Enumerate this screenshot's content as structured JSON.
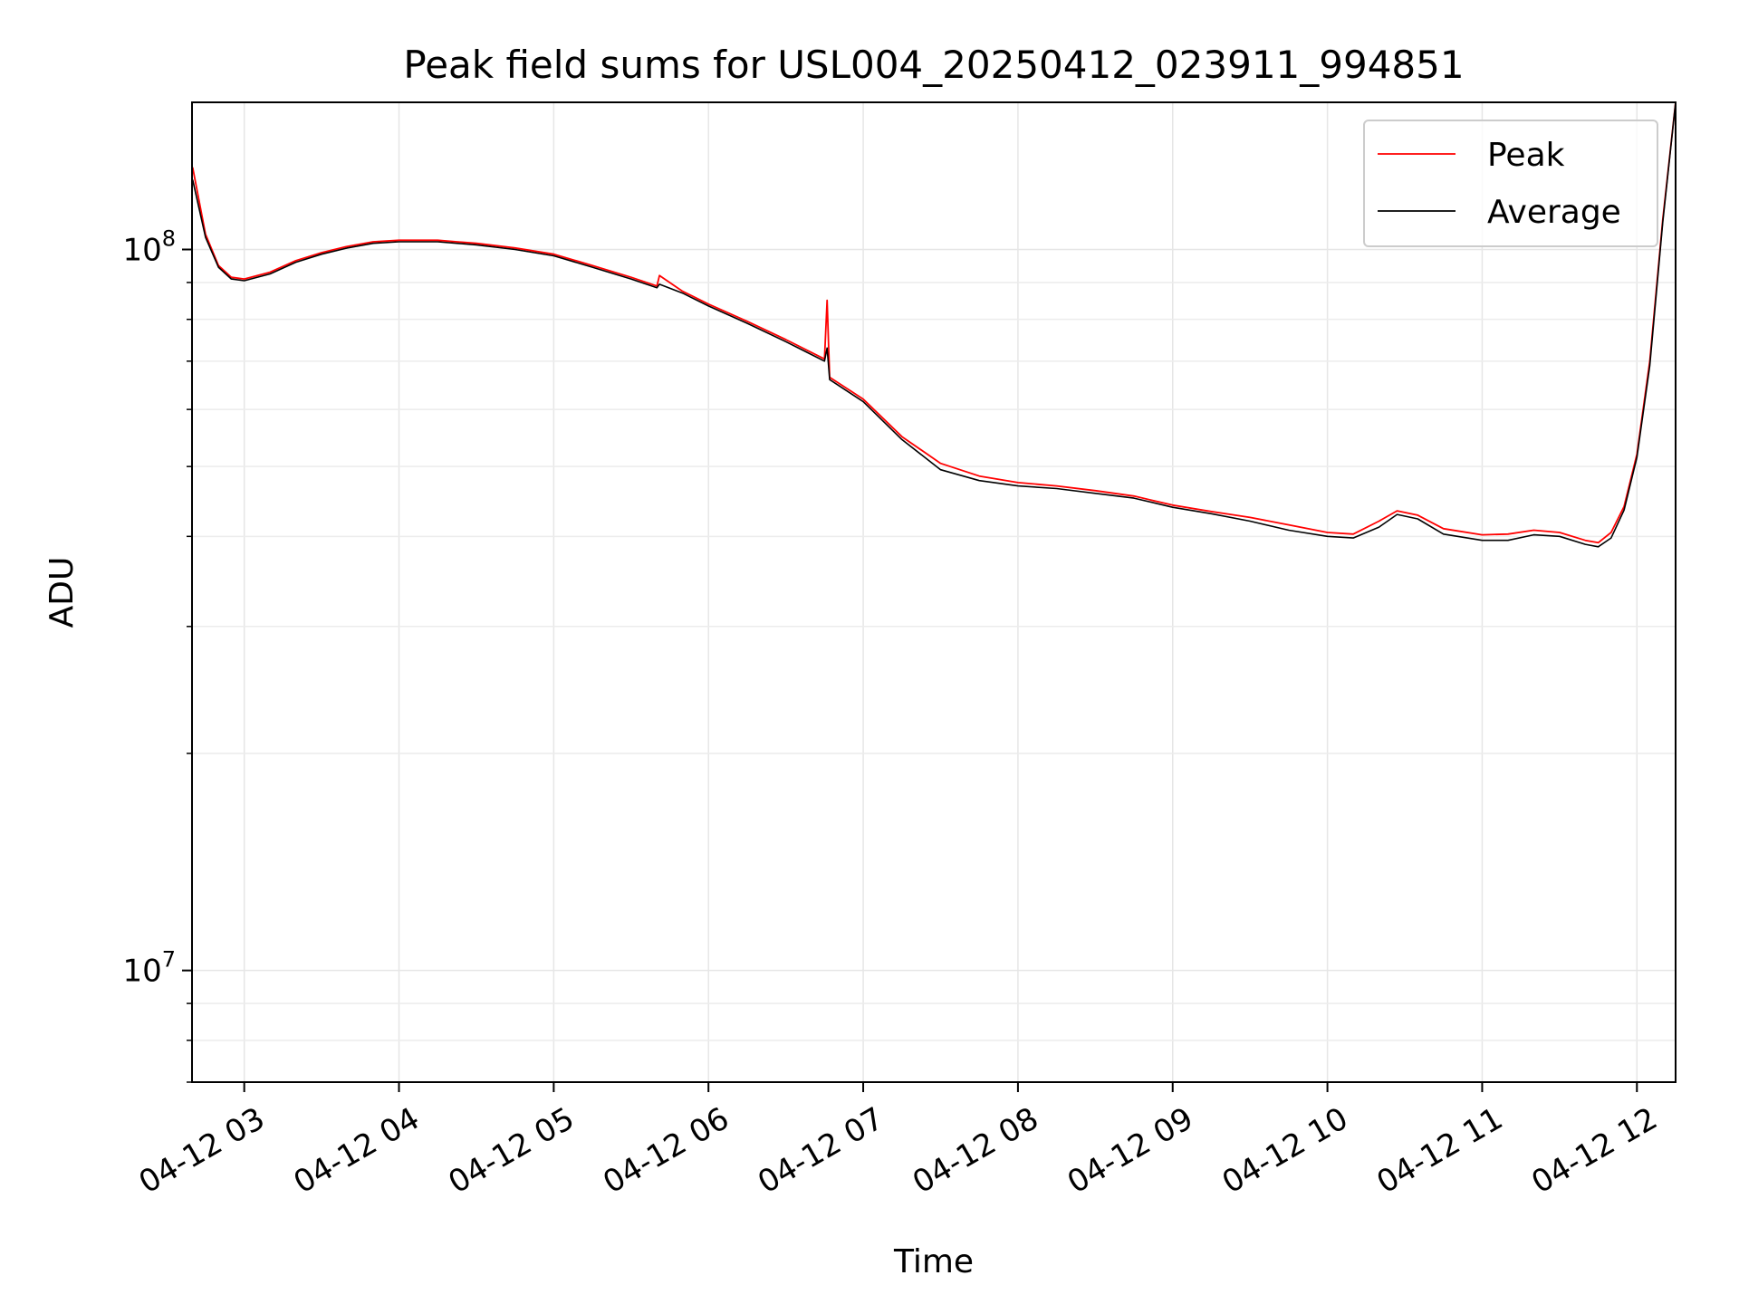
{
  "chart_data": {
    "type": "line",
    "title": "Peak field sums for USL004_20250412_023911_994851",
    "xlabel": "Time",
    "ylabel": "ADU",
    "xlim": [
      "04-12 02:39:45",
      "04-12 12:15:00"
    ],
    "ylim": [
      7000000,
      160000000
    ],
    "yscale": "log",
    "grid": true,
    "legend_position": "upper right",
    "x_ticks": [
      "04-12 03",
      "04-12 04",
      "04-12 05",
      "04-12 06",
      "04-12 07",
      "04-12 08",
      "04-12 09",
      "04-12 10",
      "04-12 11",
      "04-12 12"
    ],
    "y_ticks": [
      {
        "value": 10000000,
        "base": "10",
        "exp": "7"
      },
      {
        "value": 100000000,
        "base": "10",
        "exp": "8"
      }
    ],
    "x": [
      "04-12 02:40",
      "04-12 02:45",
      "04-12 02:50",
      "04-12 02:55",
      "04-12 03:00",
      "04-12 03:10",
      "04-12 03:20",
      "04-12 03:30",
      "04-12 03:40",
      "04-12 03:50",
      "04-12 04:00",
      "04-12 04:15",
      "04-12 04:30",
      "04-12 04:45",
      "04-12 05:00",
      "04-12 05:15",
      "04-12 05:30",
      "04-12 05:40",
      "04-12 05:41",
      "04-12 05:50",
      "04-12 06:00",
      "04-12 06:15",
      "04-12 06:30",
      "04-12 06:45",
      "04-12 06:46",
      "04-12 06:47",
      "04-12 07:00",
      "04-12 07:15",
      "04-12 07:30",
      "04-12 07:45",
      "04-12 08:00",
      "04-12 08:15",
      "04-12 08:30",
      "04-12 08:45",
      "04-12 09:00",
      "04-12 09:15",
      "04-12 09:30",
      "04-12 09:45",
      "04-12 10:00",
      "04-12 10:10",
      "04-12 10:20",
      "04-12 10:27",
      "04-12 10:35",
      "04-12 10:45",
      "04-12 11:00",
      "04-12 11:10",
      "04-12 11:20",
      "04-12 11:30",
      "04-12 11:40",
      "04-12 11:45",
      "04-12 11:50",
      "04-12 11:55",
      "04-12 12:00",
      "04-12 12:05",
      "04-12 12:10",
      "04-12 12:15"
    ],
    "series": [
      {
        "name": "Peak",
        "color": "#ff0000",
        "values": [
          130000000,
          105000000,
          95000000,
          91500000,
          91000000,
          93000000,
          96500000,
          99000000,
          101000000,
          102500000,
          103000000,
          103000000,
          102000000,
          100500000,
          98500000,
          95000000,
          91500000,
          89000000,
          92000000,
          87500000,
          84000000,
          79500000,
          75000000,
          70500000,
          85000000,
          66500000,
          62000000,
          55000000,
          50500000,
          48500000,
          47500000,
          47000000,
          46300000,
          45500000,
          44200000,
          43300000,
          42500000,
          41500000,
          40500000,
          40300000,
          42000000,
          43400000,
          42800000,
          41000000,
          40200000,
          40300000,
          40800000,
          40500000,
          39500000,
          39200000,
          40500000,
          44000000,
          52000000,
          70000000,
          110000000,
          160000000
        ]
      },
      {
        "name": "Average",
        "color": "#000000",
        "values": [
          125000000,
          104000000,
          94500000,
          91000000,
          90500000,
          92500000,
          96000000,
          98500000,
          100500000,
          102000000,
          102500000,
          102500000,
          101500000,
          100000000,
          98000000,
          94500000,
          91000000,
          88500000,
          89500000,
          87000000,
          83500000,
          79000000,
          74500000,
          70000000,
          73000000,
          66000000,
          61500000,
          54500000,
          49500000,
          47800000,
          47000000,
          46600000,
          45900000,
          45200000,
          43900000,
          43000000,
          42000000,
          40800000,
          40000000,
          39800000,
          41200000,
          42900000,
          42300000,
          40300000,
          39500000,
          39500000,
          40200000,
          40000000,
          39000000,
          38700000,
          39800000,
          43500000,
          51500000,
          69000000,
          109000000,
          160000000
        ]
      }
    ]
  }
}
